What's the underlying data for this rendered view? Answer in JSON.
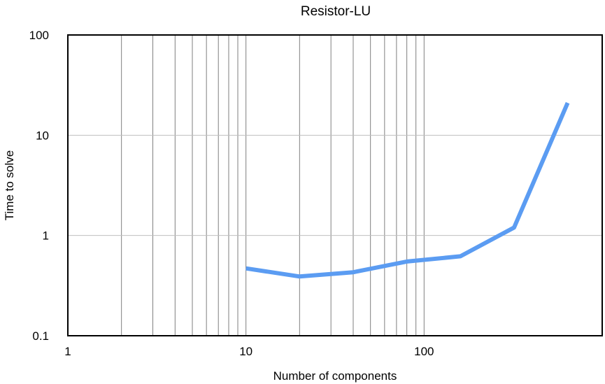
{
  "chart_data": {
    "type": "line",
    "title": "Resistor-LU",
    "xlabel": "Number of components",
    "ylabel": "Time to solve",
    "x_scale": "log",
    "y_scale": "log",
    "xlim": [
      1,
      1000
    ],
    "ylim": [
      0.1,
      100
    ],
    "x_ticks": [
      "1",
      "10",
      "100"
    ],
    "y_ticks": [
      "0.1",
      "1",
      "10",
      "100"
    ],
    "grid": {
      "x": true,
      "y": true,
      "x_minor": true
    },
    "legend": "none",
    "series": [
      {
        "color": "#5b9cf2",
        "x": [
          10,
          20,
          40,
          80,
          160,
          320,
          640
        ],
        "y": [
          0.47,
          0.39,
          0.43,
          0.55,
          0.62,
          1.2,
          21
        ]
      }
    ]
  }
}
